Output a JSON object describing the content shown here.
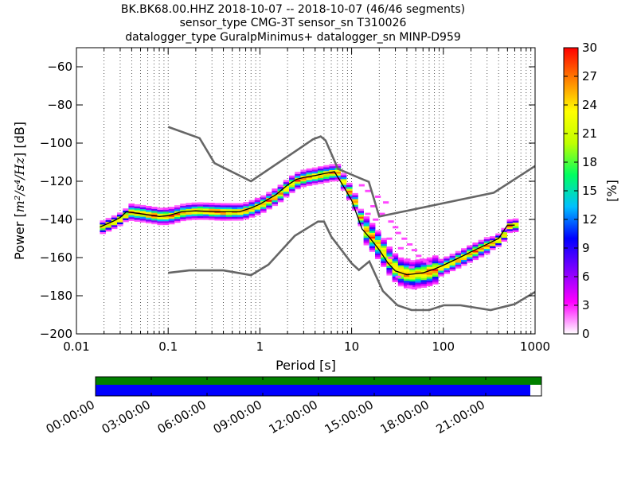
{
  "chart_data": {
    "type": "heatmap",
    "title_lines": [
      "BK.BK68.00.HHZ   2018-10-07 -- 2018-10-07  (46/46 segments)",
      "sensor_type CMG-3T sensor_sn T310026",
      "datalogger_type GuralpMinimus+ datalogger_sn MINP-D959"
    ],
    "xlabel": "Period [s]",
    "ylabel_prefix": "Power [",
    "ylabel_math": "m²/s⁴/Hz",
    "ylabel_suffix": "] [dB]",
    "xscale": "log",
    "xlim": [
      0.01,
      1000
    ],
    "ylim": [
      -200,
      -50
    ],
    "xticks": [
      {
        "value": 0.01,
        "label": "0.01"
      },
      {
        "value": 0.1,
        "label": "0.1"
      },
      {
        "value": 1,
        "label": "1"
      },
      {
        "value": 10,
        "label": "10"
      },
      {
        "value": 100,
        "label": "100"
      },
      {
        "value": 1000,
        "label": "1000"
      }
    ],
    "yticks": [
      {
        "value": -60,
        "label": "−60"
      },
      {
        "value": -80,
        "label": "−80"
      },
      {
        "value": -100,
        "label": "−100"
      },
      {
        "value": -120,
        "label": "−120"
      },
      {
        "value": -140,
        "label": "−140"
      },
      {
        "value": -160,
        "label": "−160"
      },
      {
        "value": -180,
        "label": "−180"
      },
      {
        "value": -200,
        "label": "−200"
      }
    ],
    "grid": "dotted-vertical",
    "colorbar": {
      "label": "[%]",
      "range": [
        0,
        30
      ],
      "ticks": [
        {
          "value": 0,
          "label": "0"
        },
        {
          "value": 3,
          "label": "3"
        },
        {
          "value": 6,
          "label": "6"
        },
        {
          "value": 9,
          "label": "9"
        },
        {
          "value": 12,
          "label": "12"
        },
        {
          "value": 15,
          "label": "15"
        },
        {
          "value": 18,
          "label": "18"
        },
        {
          "value": 21,
          "label": "21"
        },
        {
          "value": 24,
          "label": "24"
        },
        {
          "value": 27,
          "label": "27"
        },
        {
          "value": 30,
          "label": "30"
        }
      ],
      "colormap": [
        "#ffffff",
        "#ff00ff",
        "#8000ff",
        "#0000ff",
        "#00c0ff",
        "#00ff60",
        "#c0ff00",
        "#ffff00",
        "#ff8000",
        "#ff0000"
      ]
    },
    "noise_models": {
      "high": [
        [
          0.1,
          -91.5
        ],
        [
          0.22,
          -97.4
        ],
        [
          0.32,
          -110.5
        ],
        [
          0.8,
          -120
        ],
        [
          3.8,
          -98
        ],
        [
          4.6,
          -96.5
        ],
        [
          5.2,
          -98.6
        ],
        [
          7.1,
          -113.5
        ],
        [
          12.5,
          -118.5
        ],
        [
          15.4,
          -120.3
        ],
        [
          20,
          -138.5
        ],
        [
          354.8,
          -126
        ],
        [
          1000,
          -112
        ]
      ],
      "low": [
        [
          0.1,
          -168
        ],
        [
          0.17,
          -166.7
        ],
        [
          0.4,
          -166.7
        ],
        [
          0.8,
          -169.2
        ],
        [
          1.24,
          -163.7
        ],
        [
          2.4,
          -148.6
        ],
        [
          4.3,
          -141.1
        ],
        [
          5.0,
          -141.1
        ],
        [
          6.0,
          -149
        ],
        [
          10,
          -163
        ],
        [
          12,
          -166.5
        ],
        [
          15.6,
          -162
        ],
        [
          21.9,
          -177.5
        ],
        [
          31.6,
          -185
        ],
        [
          45,
          -187.5
        ],
        [
          70,
          -187.5
        ],
        [
          101,
          -185
        ],
        [
          154,
          -185
        ],
        [
          328,
          -187.5
        ],
        [
          600,
          -184.4
        ],
        [
          1000,
          -178
        ]
      ]
    },
    "median_curve": [
      [
        0.018,
        -144
      ],
      [
        0.025,
        -141
      ],
      [
        0.03,
        -139
      ],
      [
        0.035,
        -136
      ],
      [
        0.05,
        -137
      ],
      [
        0.08,
        -138.5
      ],
      [
        0.1,
        -138
      ],
      [
        0.14,
        -136
      ],
      [
        0.2,
        -135.5
      ],
      [
        0.35,
        -136
      ],
      [
        0.6,
        -136
      ],
      [
        0.8,
        -134
      ],
      [
        1.0,
        -132
      ],
      [
        1.5,
        -127
      ],
      [
        2.0,
        -122
      ],
      [
        2.5,
        -119
      ],
      [
        3.0,
        -118
      ],
      [
        4.0,
        -117
      ],
      [
        5.0,
        -116
      ],
      [
        6.5,
        -115
      ],
      [
        8.0,
        -122
      ],
      [
        10,
        -130
      ],
      [
        13,
        -145
      ],
      [
        16,
        -150
      ],
      [
        20,
        -156
      ],
      [
        25,
        -163
      ],
      [
        30,
        -167
      ],
      [
        40,
        -169
      ],
      [
        60,
        -168
      ],
      [
        80,
        -166
      ],
      [
        100,
        -164
      ],
      [
        150,
        -160
      ],
      [
        200,
        -157
      ],
      [
        300,
        -153
      ],
      [
        400,
        -150
      ],
      [
        500,
        -143
      ],
      [
        600,
        -143
      ]
    ],
    "scatter_cloud": [
      [
        12,
        -122
      ],
      [
        14,
        -125
      ],
      [
        18,
        -128
      ],
      [
        22,
        -131
      ],
      [
        16,
        -133
      ],
      [
        20,
        -137
      ],
      [
        25,
        -141
      ],
      [
        28,
        -144
      ],
      [
        30,
        -147
      ],
      [
        35,
        -150
      ],
      [
        40,
        -153
      ],
      [
        45,
        -156
      ],
      [
        50,
        -159
      ],
      [
        55,
        -161
      ],
      [
        60,
        -162
      ],
      [
        65,
        -163
      ],
      [
        14,
        -137
      ],
      [
        17,
        -140
      ],
      [
        24,
        -150
      ],
      [
        32,
        -155
      ],
      [
        38,
        -161
      ],
      [
        42,
        -165
      ],
      [
        25,
        -160
      ],
      [
        30,
        -170
      ],
      [
        40,
        -175
      ],
      [
        45,
        -176
      ]
    ],
    "segment_timeline": {
      "tick_labels": [
        "00:00:00",
        "03:00:00",
        "06:00:00",
        "09:00:00",
        "12:00:00",
        "15:00:00",
        "18:00:00",
        "21:00:00"
      ],
      "available_fraction": 1.0,
      "used_fraction": 0.975,
      "available_color": "#008000",
      "used_color": "#0000ff"
    }
  }
}
